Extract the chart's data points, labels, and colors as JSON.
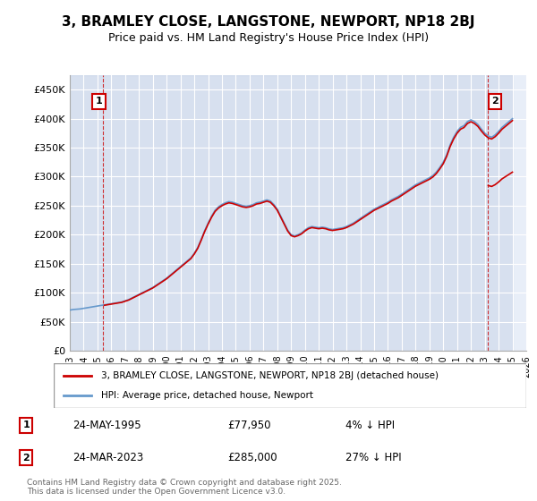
{
  "title_line1": "3, BRAMLEY CLOSE, LANGSTONE, NEWPORT, NP18 2BJ",
  "title_line2": "Price paid vs. HM Land Registry's House Price Index (HPI)",
  "ylabel_ticks": [
    "£0",
    "£50K",
    "£100K",
    "£150K",
    "£200K",
    "£250K",
    "£300K",
    "£350K",
    "£400K",
    "£450K"
  ],
  "ylabel_values": [
    0,
    50000,
    100000,
    150000,
    200000,
    250000,
    300000,
    350000,
    400000,
    450000
  ],
  "ylim": [
    0,
    475000
  ],
  "xlim_start": 1993,
  "xlim_end": 2026,
  "hpi_color": "#6699cc",
  "price_color": "#cc0000",
  "bg_color": "#e8eef8",
  "hatch_color": "#c8d4e8",
  "grid_color": "#ffffff",
  "transaction1_date": "24-MAY-1995",
  "transaction1_price": 77950,
  "transaction1_hpi_pct": "4%",
  "transaction1_label": "1",
  "transaction1_year": 1995.4,
  "transaction2_date": "24-MAR-2023",
  "transaction2_price": 285000,
  "transaction2_hpi_pct": "27%",
  "transaction2_label": "2",
  "transaction2_year": 2023.23,
  "legend_line1": "3, BRAMLEY CLOSE, LANGSTONE, NEWPORT, NP18 2BJ (detached house)",
  "legend_line2": "HPI: Average price, detached house, Newport",
  "footnote": "Contains HM Land Registry data © Crown copyright and database right 2025.\nThis data is licensed under the Open Government Licence v3.0.",
  "hpi_data_years": [
    1993.0,
    1993.25,
    1993.5,
    1993.75,
    1994.0,
    1994.25,
    1994.5,
    1994.75,
    1995.0,
    1995.25,
    1995.5,
    1995.75,
    1996.0,
    1996.25,
    1996.5,
    1996.75,
    1997.0,
    1997.25,
    1997.5,
    1997.75,
    1998.0,
    1998.25,
    1998.5,
    1998.75,
    1999.0,
    1999.25,
    1999.5,
    1999.75,
    2000.0,
    2000.25,
    2000.5,
    2000.75,
    2001.0,
    2001.25,
    2001.5,
    2001.75,
    2002.0,
    2002.25,
    2002.5,
    2002.75,
    2003.0,
    2003.25,
    2003.5,
    2003.75,
    2004.0,
    2004.25,
    2004.5,
    2004.75,
    2005.0,
    2005.25,
    2005.5,
    2005.75,
    2006.0,
    2006.25,
    2006.5,
    2006.75,
    2007.0,
    2007.25,
    2007.5,
    2007.75,
    2008.0,
    2008.25,
    2008.5,
    2008.75,
    2009.0,
    2009.25,
    2009.5,
    2009.75,
    2010.0,
    2010.25,
    2010.5,
    2010.75,
    2011.0,
    2011.25,
    2011.5,
    2011.75,
    2012.0,
    2012.25,
    2012.5,
    2012.75,
    2013.0,
    2013.25,
    2013.5,
    2013.75,
    2014.0,
    2014.25,
    2014.5,
    2014.75,
    2015.0,
    2015.25,
    2015.5,
    2015.75,
    2016.0,
    2016.25,
    2016.5,
    2016.75,
    2017.0,
    2017.25,
    2017.5,
    2017.75,
    2018.0,
    2018.25,
    2018.5,
    2018.75,
    2019.0,
    2019.25,
    2019.5,
    2019.75,
    2020.0,
    2020.25,
    2020.5,
    2020.75,
    2021.0,
    2021.25,
    2021.5,
    2021.75,
    2022.0,
    2022.25,
    2022.5,
    2022.75,
    2023.0,
    2023.25,
    2023.5,
    2023.75,
    2024.0,
    2024.25,
    2024.5,
    2024.75,
    2025.0
  ],
  "hpi_data_values": [
    70000,
    71000,
    71500,
    72000,
    73000,
    74000,
    75000,
    76000,
    77000,
    78000,
    79000,
    80000,
    81000,
    82000,
    83000,
    84000,
    86000,
    88000,
    91000,
    94000,
    97000,
    100000,
    103000,
    106000,
    109000,
    113000,
    117000,
    121000,
    125000,
    130000,
    135000,
    140000,
    145000,
    150000,
    155000,
    160000,
    168000,
    178000,
    192000,
    207000,
    220000,
    232000,
    242000,
    248000,
    252000,
    255000,
    257000,
    256000,
    254000,
    252000,
    250000,
    249000,
    250000,
    252000,
    255000,
    256000,
    258000,
    260000,
    258000,
    252000,
    244000,
    232000,
    220000,
    208000,
    200000,
    198000,
    200000,
    203000,
    208000,
    212000,
    214000,
    213000,
    212000,
    213000,
    212000,
    210000,
    209000,
    210000,
    211000,
    212000,
    214000,
    217000,
    220000,
    224000,
    228000,
    232000,
    236000,
    240000,
    244000,
    247000,
    250000,
    253000,
    256000,
    260000,
    263000,
    266000,
    270000,
    274000,
    278000,
    282000,
    286000,
    289000,
    292000,
    295000,
    298000,
    302000,
    308000,
    316000,
    325000,
    338000,
    355000,
    368000,
    378000,
    385000,
    388000,
    395000,
    398000,
    395000,
    390000,
    382000,
    375000,
    370000,
    368000,
    372000,
    378000,
    385000,
    390000,
    395000,
    400000
  ]
}
